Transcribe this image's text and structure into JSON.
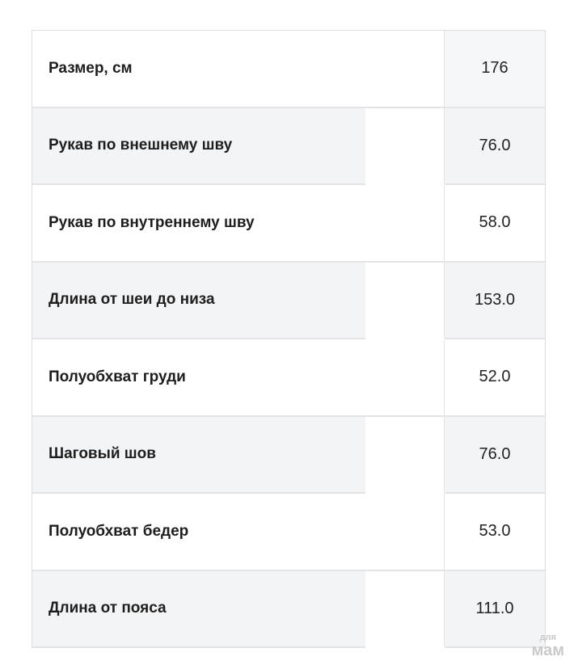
{
  "rows": [
    {
      "label": "Размер, см",
      "value": "176"
    },
    {
      "label": "Рукав по внешнему шву",
      "value": "76.0"
    },
    {
      "label": "Рукав по внутреннему шву",
      "value": "58.0"
    },
    {
      "label": "Длина от шеи до низа",
      "value": "153.0"
    },
    {
      "label": "Полуобхват груди",
      "value": "52.0"
    },
    {
      "label": "Шаговый шов",
      "value": "76.0"
    },
    {
      "label": "Полуобхват бедер",
      "value": "53.0"
    },
    {
      "label": "Длина от пояса",
      "value": "111.0"
    }
  ],
  "watermark": {
    "small": "для",
    "big": "мам"
  }
}
